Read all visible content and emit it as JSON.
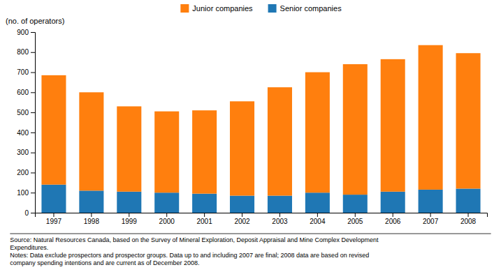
{
  "chart_data": {
    "type": "bar",
    "stacked": true,
    "ylabel": "(no. of operators)",
    "categories": [
      "1997",
      "1998",
      "1999",
      "2000",
      "2001",
      "2002",
      "2003",
      "2004",
      "2005",
      "2006",
      "2007",
      "2008"
    ],
    "series": [
      {
        "name": "Senior companies",
        "values": [
          140,
          110,
          105,
          100,
          95,
          85,
          85,
          100,
          90,
          105,
          115,
          120
        ]
      },
      {
        "name": "Junior companies",
        "values": [
          545,
          490,
          425,
          405,
          415,
          470,
          540,
          600,
          650,
          660,
          720,
          675
        ]
      }
    ],
    "ylim": [
      0,
      900
    ],
    "yticks": [
      0,
      100,
      200,
      300,
      400,
      500,
      600,
      700,
      800,
      900
    ],
    "grid": false,
    "legend": "top",
    "annotations": [
      "Source: Natural Resources Canada, based on the Survey of Mineral Exploration, Deposit Appraisal and Mine Complex Development\nExpenditures.\nNotes: Data exclude prospectors and prospector groups. Data up to and including 2007 are final; 2008 data are based on revised\ncompany spending intentions and are current as of December 2008."
    ]
  }
}
